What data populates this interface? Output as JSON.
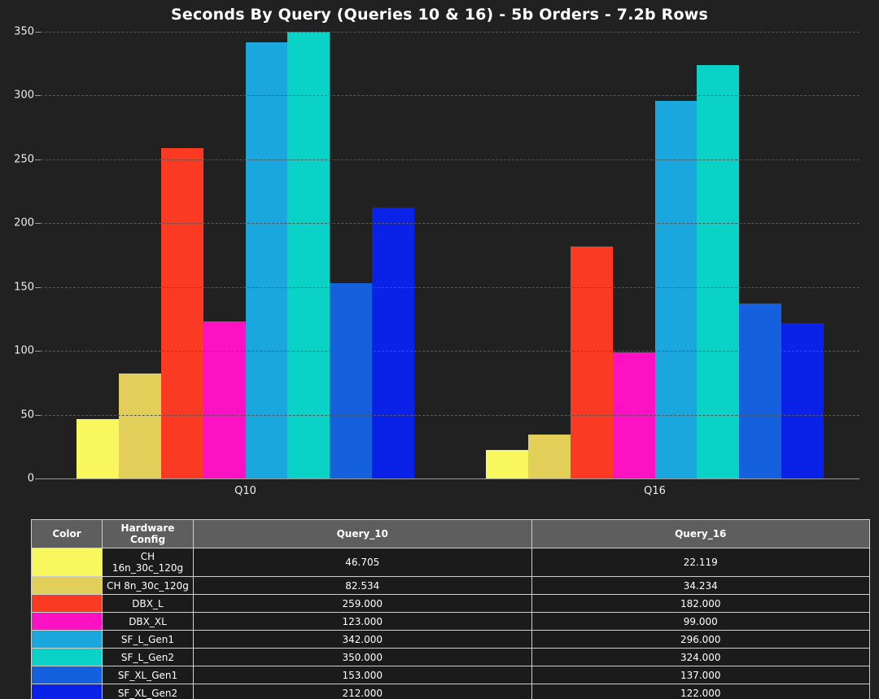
{
  "title": "Seconds By Query (Queries 10 & 16) - 5b Orders - 7.2b Rows",
  "chart_data": {
    "type": "bar",
    "title": "Seconds By Query (Queries 10 & 16) - 5b Orders - 7.2b Rows",
    "categories": [
      "Q10",
      "Q16"
    ],
    "series": [
      {
        "name": "CH 16n_30c_120g",
        "color": "#f8f85e",
        "values": [
          46.705,
          22.119
        ]
      },
      {
        "name": "CH 8n_30c_120g",
        "color": "#e2cf5a",
        "values": [
          82.534,
          34.234
        ]
      },
      {
        "name": "DBX_L",
        "color": "#fb3a24",
        "values": [
          259.0,
          182.0
        ]
      },
      {
        "name": "DBX_XL",
        "color": "#fc12c3",
        "values": [
          123.0,
          99.0
        ]
      },
      {
        "name": "SF_L_Gen1",
        "color": "#19a7dd",
        "values": [
          342.0,
          296.0
        ]
      },
      {
        "name": "SF_L_Gen2",
        "color": "#0ad2c6",
        "values": [
          350.0,
          324.0
        ]
      },
      {
        "name": "SF_XL_Gen1",
        "color": "#1560dd",
        "values": [
          153.0,
          137.0
        ]
      },
      {
        "name": "SF_XL_Gen2",
        "color": "#0a22e8",
        "values": [
          212.0,
          122.0
        ]
      }
    ],
    "xlabel": "",
    "ylabel": "",
    "ylim": [
      0,
      350
    ],
    "yticks": [
      0,
      50,
      100,
      150,
      200,
      250,
      300,
      350
    ],
    "grid": "horizontal-dashed",
    "legend_position": "table-below"
  },
  "table": {
    "headers": [
      "Color",
      "Hardware Config",
      "Query_10",
      "Query_16"
    ],
    "rows": [
      {
        "color": "#f8f85e",
        "config": "CH 16n_30c_120g",
        "q10": "46.705",
        "q16": "22.119"
      },
      {
        "color": "#e2cf5a",
        "config": "CH 8n_30c_120g",
        "q10": "82.534",
        "q16": "34.234"
      },
      {
        "color": "#fb3a24",
        "config": "DBX_L",
        "q10": "259.000",
        "q16": "182.000"
      },
      {
        "color": "#fc12c3",
        "config": "DBX_XL",
        "q10": "123.000",
        "q16": "99.000"
      },
      {
        "color": "#19a7dd",
        "config": "SF_L_Gen1",
        "q10": "342.000",
        "q16": "296.000"
      },
      {
        "color": "#0ad2c6",
        "config": "SF_L_Gen2",
        "q10": "350.000",
        "q16": "324.000"
      },
      {
        "color": "#1560dd",
        "config": "SF_XL_Gen1",
        "q10": "153.000",
        "q16": "137.000"
      },
      {
        "color": "#0a22e8",
        "config": "SF_XL_Gen2",
        "q10": "212.000",
        "q16": "122.000"
      }
    ]
  }
}
